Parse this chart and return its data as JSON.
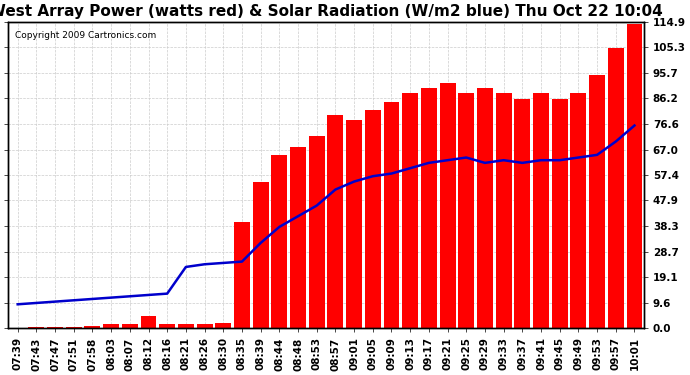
{
  "title": "West Array Power (watts red) & Solar Radiation (W/m2 blue) Thu Oct 22 10:04",
  "copyright": "Copyright 2009 Cartronics.com",
  "ylabel_right": [
    "0.0",
    "9.6",
    "19.1",
    "28.7",
    "38.3",
    "47.9",
    "57.4",
    "67.0",
    "76.6",
    "86.2",
    "95.7",
    "105.3",
    "114.9"
  ],
  "yticks_vals": [
    0.0,
    9.6,
    19.1,
    28.7,
    38.3,
    47.9,
    57.4,
    67.0,
    76.6,
    86.2,
    95.7,
    105.3,
    114.9
  ],
  "ymax": 114.9,
  "ymin": 0.0,
  "xtick_labels": [
    "07:39",
    "07:43",
    "07:47",
    "07:51",
    "07:58",
    "08:03",
    "08:07",
    "08:12",
    "08:16",
    "08:21",
    "08:26",
    "08:30",
    "08:35",
    "08:39",
    "08:44",
    "08:48",
    "08:53",
    "08:57",
    "09:01",
    "09:05",
    "09:09",
    "09:13",
    "09:17",
    "09:21",
    "09:25",
    "09:29",
    "09:33",
    "09:37",
    "09:41",
    "09:45",
    "09:49",
    "09:53",
    "09:57",
    "10:01"
  ],
  "bar_color": "#FF0000",
  "line_color": "#0000CC",
  "bg_color": "#FFFFFF",
  "grid_color": "#CCCCCC",
  "title_fontsize": 11,
  "tick_fontsize": 7.5,
  "bar_data": [
    0.2,
    0.5,
    0.5,
    0.5,
    0.7,
    1.5,
    1.5,
    4.5,
    1.5,
    1.5,
    1.5,
    2.0,
    40.0,
    55.0,
    65.0,
    68.0,
    72.0,
    80.0,
    78.0,
    82.0,
    85.0,
    88.0,
    90.0,
    92.0,
    88.0,
    90.0,
    88.0,
    86.0,
    88.0,
    86.0,
    88.0,
    95.0,
    105.0,
    114.0
  ],
  "line_data": [
    9.0,
    9.5,
    10.0,
    10.5,
    11.0,
    11.5,
    12.0,
    12.5,
    13.0,
    23.0,
    24.0,
    24.5,
    25.0,
    32.0,
    38.0,
    42.0,
    46.0,
    52.0,
    55.0,
    57.0,
    58.0,
    60.0,
    62.0,
    63.0,
    64.0,
    62.0,
    63.0,
    62.0,
    63.0,
    63.0,
    64.0,
    65.0,
    70.0,
    76.0
  ]
}
